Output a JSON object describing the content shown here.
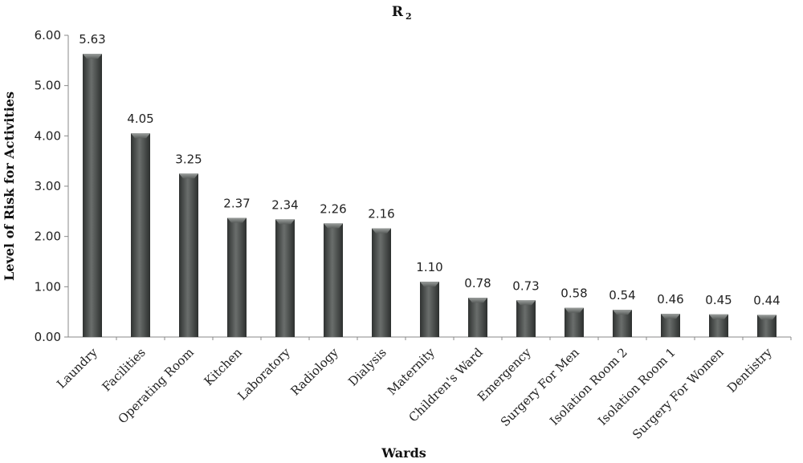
{
  "chart_data": {
    "type": "bar",
    "title": "R",
    "title_subscript": "2",
    "xlabel": "Wards",
    "ylabel": "Level of Risk for Activities",
    "ylim": [
      0,
      6
    ],
    "yticks": [
      "0.00",
      "1.00",
      "2.00",
      "3.00",
      "4.00",
      "5.00",
      "6.00"
    ],
    "grid": false,
    "bar_color": "#4a4d4b",
    "categories": [
      "Laundry",
      "Facilities",
      "Operating Room",
      "Kitchen",
      "Laboratory",
      "Radiology",
      "Dialysis",
      "Maternity",
      "Children's Ward",
      "Emergency",
      "Surgery For Men",
      "Isolation Room 2",
      "Isolation Room 1",
      "Surgery For Women",
      "Dentistry"
    ],
    "values": [
      5.63,
      4.05,
      3.25,
      2.37,
      2.34,
      2.26,
      2.16,
      1.1,
      0.78,
      0.73,
      0.58,
      0.54,
      0.46,
      0.45,
      0.44
    ],
    "data_labels": [
      "5.63",
      "4.05",
      "3.25",
      "2.37",
      "2.34",
      "2.26",
      "2.16",
      "1.10",
      "0.78",
      "0.73",
      "0.58",
      "0.54",
      "0.46",
      "0.45",
      "0.44"
    ]
  }
}
